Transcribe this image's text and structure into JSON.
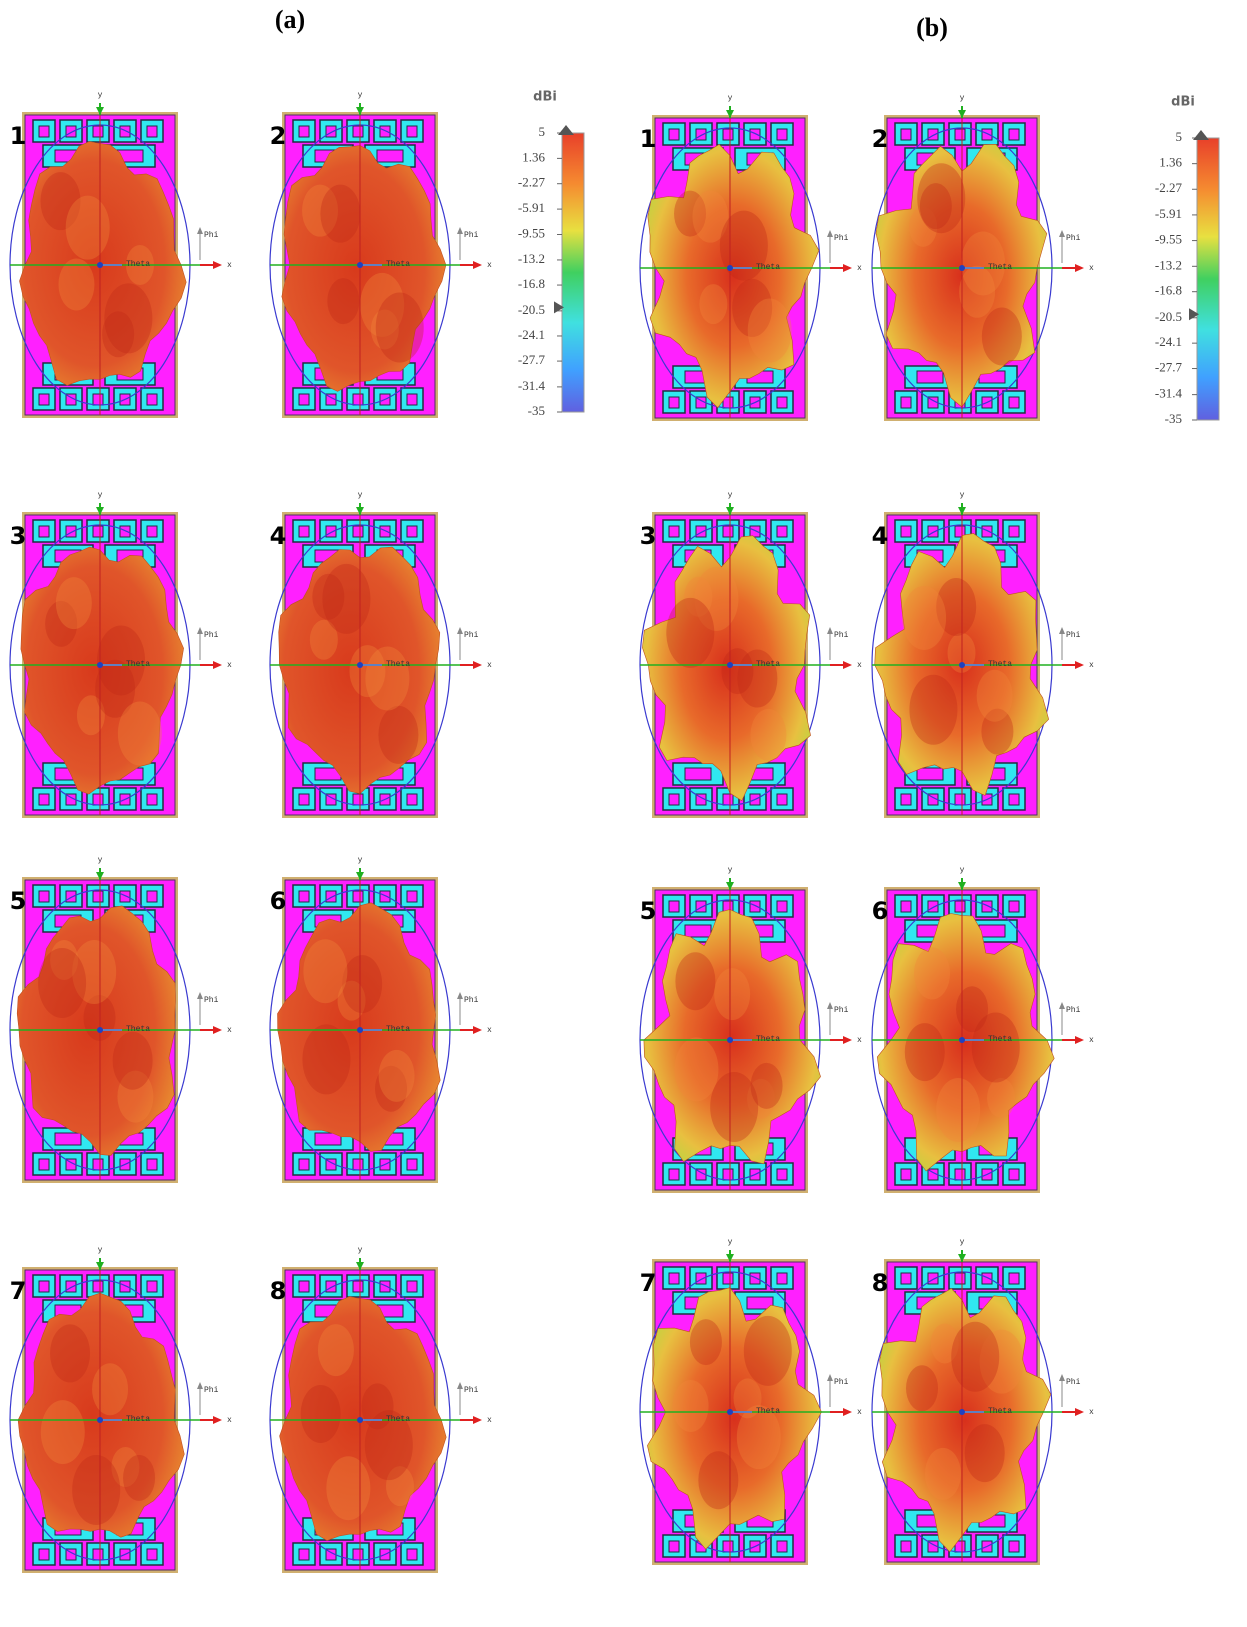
{
  "figure": {
    "panels": [
      {
        "label": "(a)",
        "colorbar": {
          "unit": "dBi",
          "ticks": [
            5,
            1.36,
            -2.27,
            -5.91,
            -9.55,
            -13.2,
            -16.8,
            -20.5,
            -24.1,
            -27.7,
            -31.4,
            -35
          ]
        },
        "plots": [
          "1",
          "2",
          "3",
          "4",
          "5",
          "6",
          "7",
          "8"
        ]
      },
      {
        "label": "(b)",
        "colorbar": {
          "unit": "dBi",
          "ticks": [
            5,
            1.36,
            -2.27,
            -5.91,
            -9.55,
            -13.2,
            -16.8,
            -20.5,
            -24.1,
            -27.7,
            -31.4,
            -35
          ]
        },
        "plots": [
          "1",
          "2",
          "3",
          "4",
          "5",
          "6",
          "7",
          "8"
        ]
      }
    ],
    "axes": {
      "y": "y",
      "x": "x",
      "phi": "Phi",
      "theta": "Theta"
    }
  }
}
